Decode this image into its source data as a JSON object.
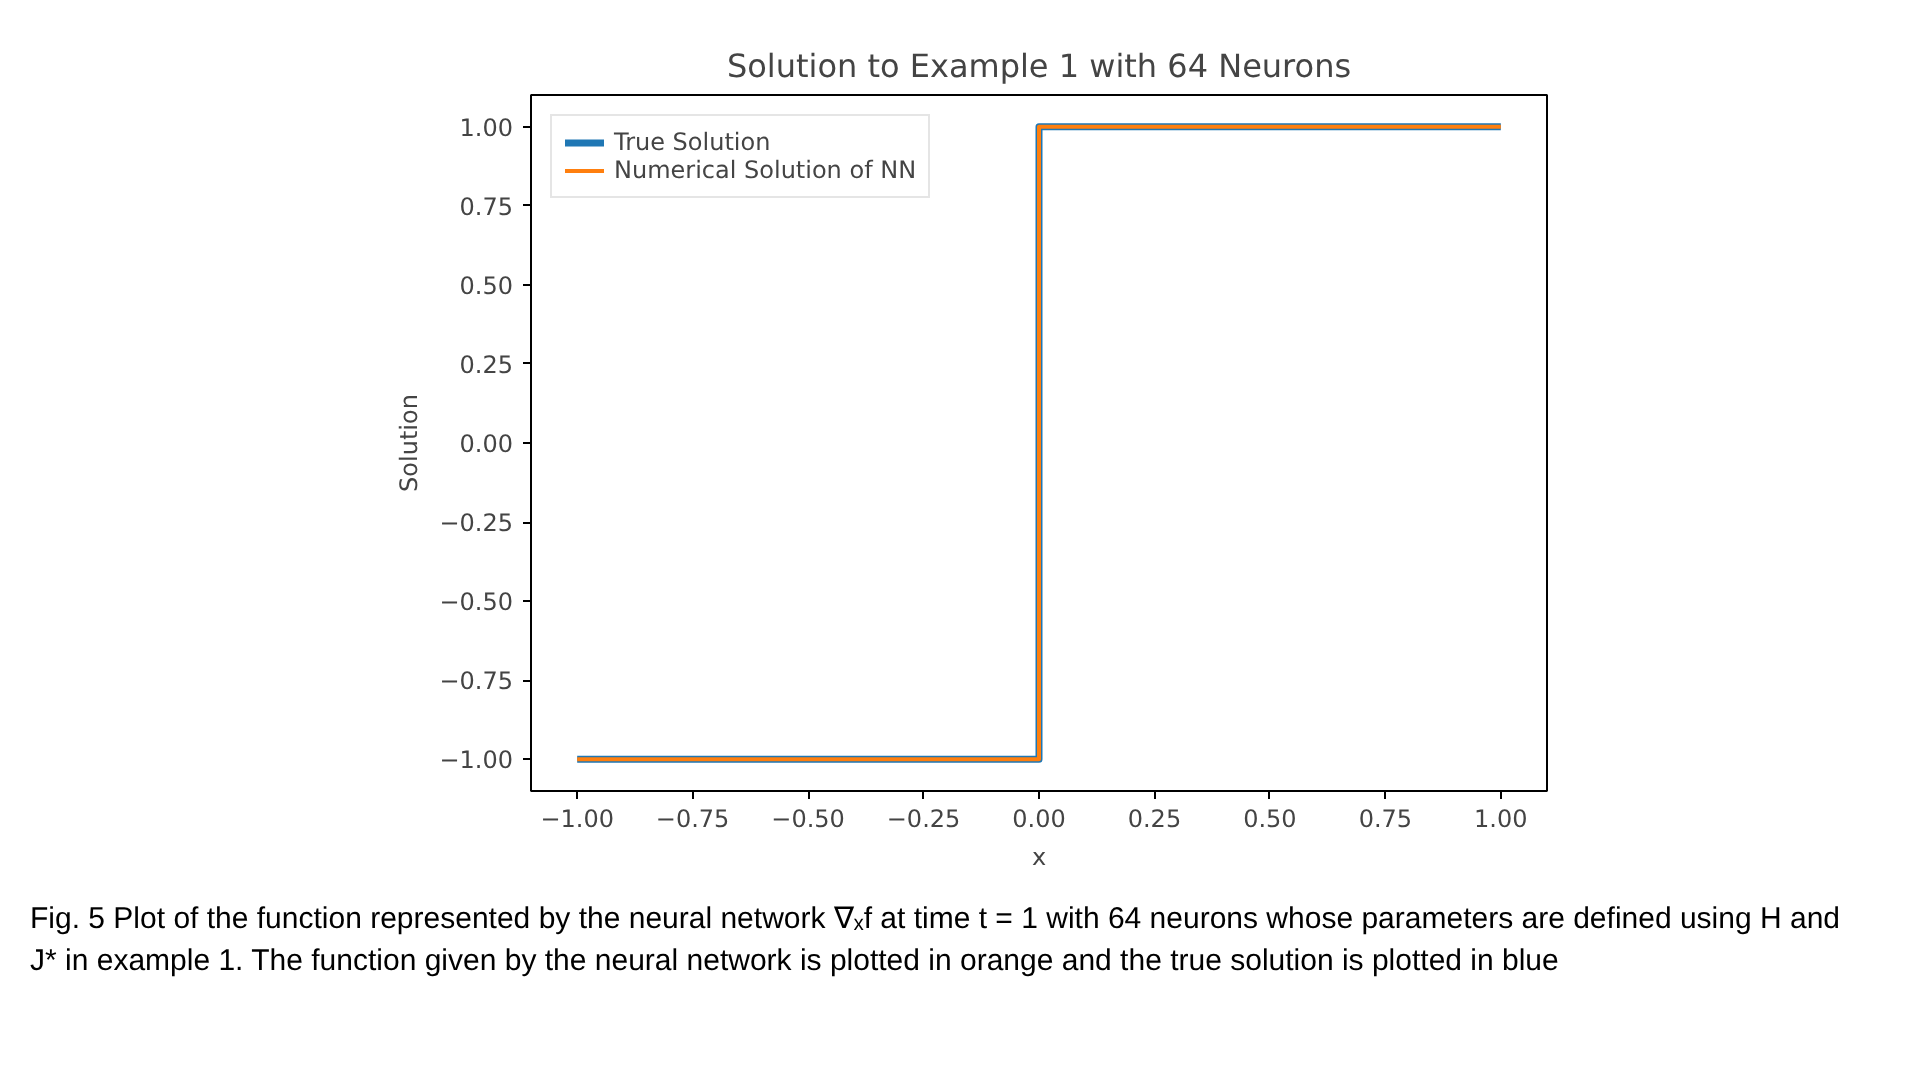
{
  "chart_data": {
    "type": "line",
    "title": "Solution to Example 1 with 64 Neurons",
    "xlabel": "x",
    "ylabel": "Solution",
    "xlim": [
      -1.1,
      1.1
    ],
    "ylim": [
      -1.1,
      1.1
    ],
    "xticks": [
      {
        "value": -1.0,
        "label": "−1.00"
      },
      {
        "value": -0.75,
        "label": "−0.75"
      },
      {
        "value": -0.5,
        "label": "−0.50"
      },
      {
        "value": -0.25,
        "label": "−0.25"
      },
      {
        "value": 0,
        "label": "0.00"
      },
      {
        "value": 0.25,
        "label": "0.25"
      },
      {
        "value": 0.5,
        "label": "0.50"
      },
      {
        "value": 0.75,
        "label": "0.75"
      },
      {
        "value": 1.0,
        "label": "1.00"
      }
    ],
    "yticks": [
      {
        "value": -1.0,
        "label": "−1.00"
      },
      {
        "value": -0.75,
        "label": "−0.75"
      },
      {
        "value": -0.5,
        "label": "−0.50"
      },
      {
        "value": -0.25,
        "label": "−0.25"
      },
      {
        "value": 0,
        "label": "0.00"
      },
      {
        "value": 0.25,
        "label": "0.25"
      },
      {
        "value": 0.5,
        "label": "0.50"
      },
      {
        "value": 0.75,
        "label": "0.75"
      },
      {
        "value": 1.0,
        "label": "1.00"
      }
    ],
    "series": [
      {
        "name": "True Solution",
        "color": "#1f77b4",
        "x": [
          -1,
          0,
          0,
          1
        ],
        "values": [
          -1,
          -1,
          1,
          1
        ]
      },
      {
        "name": "Numerical Solution of NN",
        "color": "#ff7f0e",
        "x": [
          -1,
          0,
          0,
          1
        ],
        "values": [
          -1,
          -1,
          1,
          1
        ]
      }
    ],
    "legend": "top left",
    "grid": false,
    "marker": "none",
    "line_style": "solid",
    "annotations": [
      "Fig. 5  Plot of the function represented by the neural network ∇ₓf at time t = 1 with 64 neurons whose parameters are defined using H and J* in example 1. The function given by the neural network is plotted in orange and the true solution is plotted in blue"
    ]
  }
}
